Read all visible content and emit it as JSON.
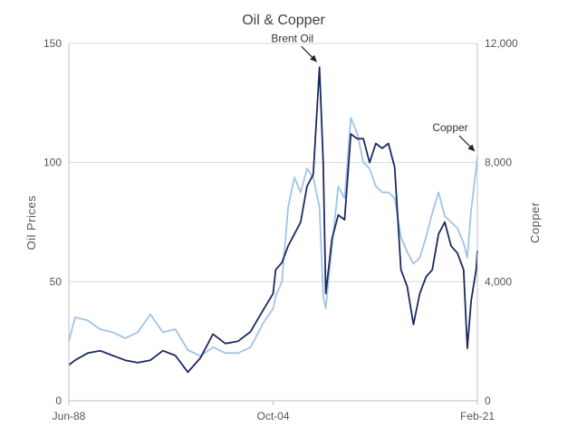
{
  "chart_data": {
    "type": "line",
    "title": "Oil & Copper",
    "x_ticks": [
      "Jun-88",
      "Oct-04",
      "Feb-21"
    ],
    "x": [
      1988.5,
      1989,
      1990,
      1991,
      1992,
      1993,
      1994,
      1995,
      1996,
      1997,
      1998,
      1999,
      2000,
      2001,
      2002,
      2003,
      2004,
      2004.8,
      2005,
      2005.5,
      2006,
      2006.5,
      2007,
      2007.5,
      2008,
      2008.5,
      2008.8,
      2009,
      2009.5,
      2010,
      2010.5,
      2011,
      2011.5,
      2012,
      2012.5,
      2013,
      2013.5,
      2014,
      2014.5,
      2015,
      2015.5,
      2016,
      2016.5,
      2017,
      2017.5,
      2018,
      2018.5,
      2019,
      2019.5,
      2020,
      2020.3,
      2020.6,
      2021,
      2021.1
    ],
    "series": [
      {
        "name": "Brent Oil",
        "axis": "left",
        "color": "#1b2a5e",
        "values": [
          15,
          17,
          20,
          21,
          19,
          17,
          16,
          17,
          21,
          19,
          12,
          18,
          28,
          24,
          25,
          29,
          38,
          45,
          55,
          58,
          65,
          70,
          75,
          90,
          95,
          140,
          100,
          45,
          68,
          78,
          76,
          112,
          110,
          110,
          100,
          108,
          106,
          108,
          98,
          55,
          48,
          32,
          45,
          52,
          55,
          70,
          75,
          65,
          62,
          55,
          22,
          42,
          55,
          63
        ]
      },
      {
        "name": "Copper",
        "axis": "right",
        "color": "#a0c4e8",
        "values": [
          2000,
          2800,
          2700,
          2400,
          2300,
          2100,
          2300,
          2900,
          2300,
          2400,
          1700,
          1500,
          1800,
          1600,
          1600,
          1800,
          2600,
          3100,
          3500,
          4000,
          6500,
          7500,
          7000,
          7800,
          7500,
          6500,
          3500,
          3100,
          5200,
          7200,
          6800,
          9500,
          9000,
          8000,
          7800,
          7200,
          7000,
          7000,
          6800,
          5500,
          5000,
          4600,
          4800,
          5500,
          6300,
          7000,
          6200,
          6000,
          5800,
          5300,
          4800,
          6400,
          7800,
          8200
        ]
      }
    ],
    "y_left": {
      "label": "Oil Prices",
      "min": 0,
      "max": 150,
      "ticks": [
        0,
        50,
        100,
        150
      ],
      "tick_labels": [
        "0",
        "50",
        "100",
        "150"
      ]
    },
    "y_right": {
      "label": "Copper",
      "min": 0,
      "max": 12000,
      "ticks": [
        0,
        4000,
        8000,
        12000
      ],
      "tick_labels": [
        "0",
        "4,000",
        "8,000",
        "12,000"
      ]
    },
    "x_range": [
      1988.5,
      2021.1
    ],
    "grid": "horizontal",
    "annotations": [
      {
        "text": "Brent Oil",
        "series": "Brent Oil",
        "x": 2008.5
      },
      {
        "text": "Copper",
        "series": "Copper",
        "x": 2021.1
      }
    ]
  }
}
